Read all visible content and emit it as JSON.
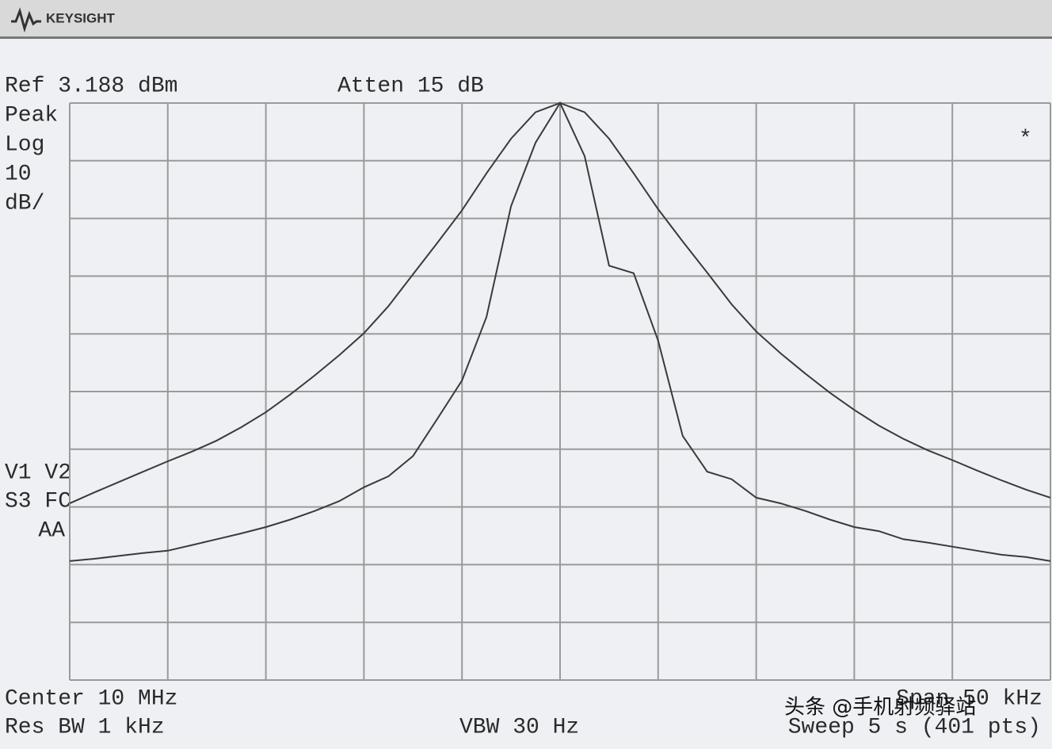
{
  "header": {
    "brand": "KEYSIGHT"
  },
  "chart_data": {
    "type": "line",
    "ref_label": "Ref 3.188 dBm",
    "atten_label": "Atten 15 dB",
    "detector_label": "Peak",
    "scale_type_label": "Log",
    "scale_value_label": "10",
    "scale_unit_label": "dB/",
    "status_mark": "*",
    "trace_flags": [
      "V1 V2",
      "S3 FC",
      "AA"
    ],
    "center_label": "Center 10 MHz",
    "span_label": "Span 50 kHz",
    "rbw_label": "Res BW 1 kHz",
    "vbw_label": "VBW 30 Hz",
    "sweep_label": "Sweep 5 s (401 pts)",
    "ylim": [
      -96.812,
      3.188
    ],
    "grid": true,
    "categories": [
      null,
      null,
      null,
      null,
      null,
      null,
      null,
      null,
      null,
      null,
      null,
      null,
      null,
      null,
      null,
      null,
      null,
      null,
      null,
      null,
      null,
      null,
      null,
      null,
      null,
      null,
      null,
      null,
      null,
      null,
      null,
      null,
      null,
      null,
      null,
      null,
      null,
      null,
      null,
      null,
      null
    ],
    "series": [
      {
        "color": "#3a3a3a",
        "values": [
          -66.2,
          -64.3,
          -62.5,
          -60.7,
          -58.9,
          -57.2,
          -55.3,
          -53,
          -50.4,
          -47.3,
          -44,
          -40.5,
          -36.7,
          -32,
          -26.5,
          -21,
          -15.4,
          -9,
          -3,
          1.6,
          3.2,
          1.6,
          -3,
          -9,
          -15.2,
          -20.8,
          -26.2,
          -31.7,
          -36.4,
          -40.2,
          -43.7,
          -47,
          -50,
          -52.7,
          -55,
          -57,
          -58.7,
          -60.5,
          -62.2,
          -63.8,
          -65.2
        ]
      },
      {
        "color": "#3a3a3a",
        "values": [
          -76.2,
          -75.8,
          -75.3,
          -74.8,
          -74.4,
          -73.4,
          -72.4,
          -71.4,
          -70.3,
          -69,
          -67.5,
          -65.8,
          -63.4,
          -61.5,
          -58,
          -51.5,
          -44.9,
          -33.9,
          -14.7,
          -3.7,
          3.2,
          -6,
          -25,
          -26.3,
          -38,
          -54.5,
          -60.7,
          -62,
          -65.2,
          -66.2,
          -67.5,
          -69,
          -70.3,
          -71,
          -72.4,
          -73,
          -73.7,
          -74.4,
          -75.1,
          -75.5,
          -76.2
        ]
      }
    ]
  },
  "watermark": "头条 @手机射频驿站"
}
